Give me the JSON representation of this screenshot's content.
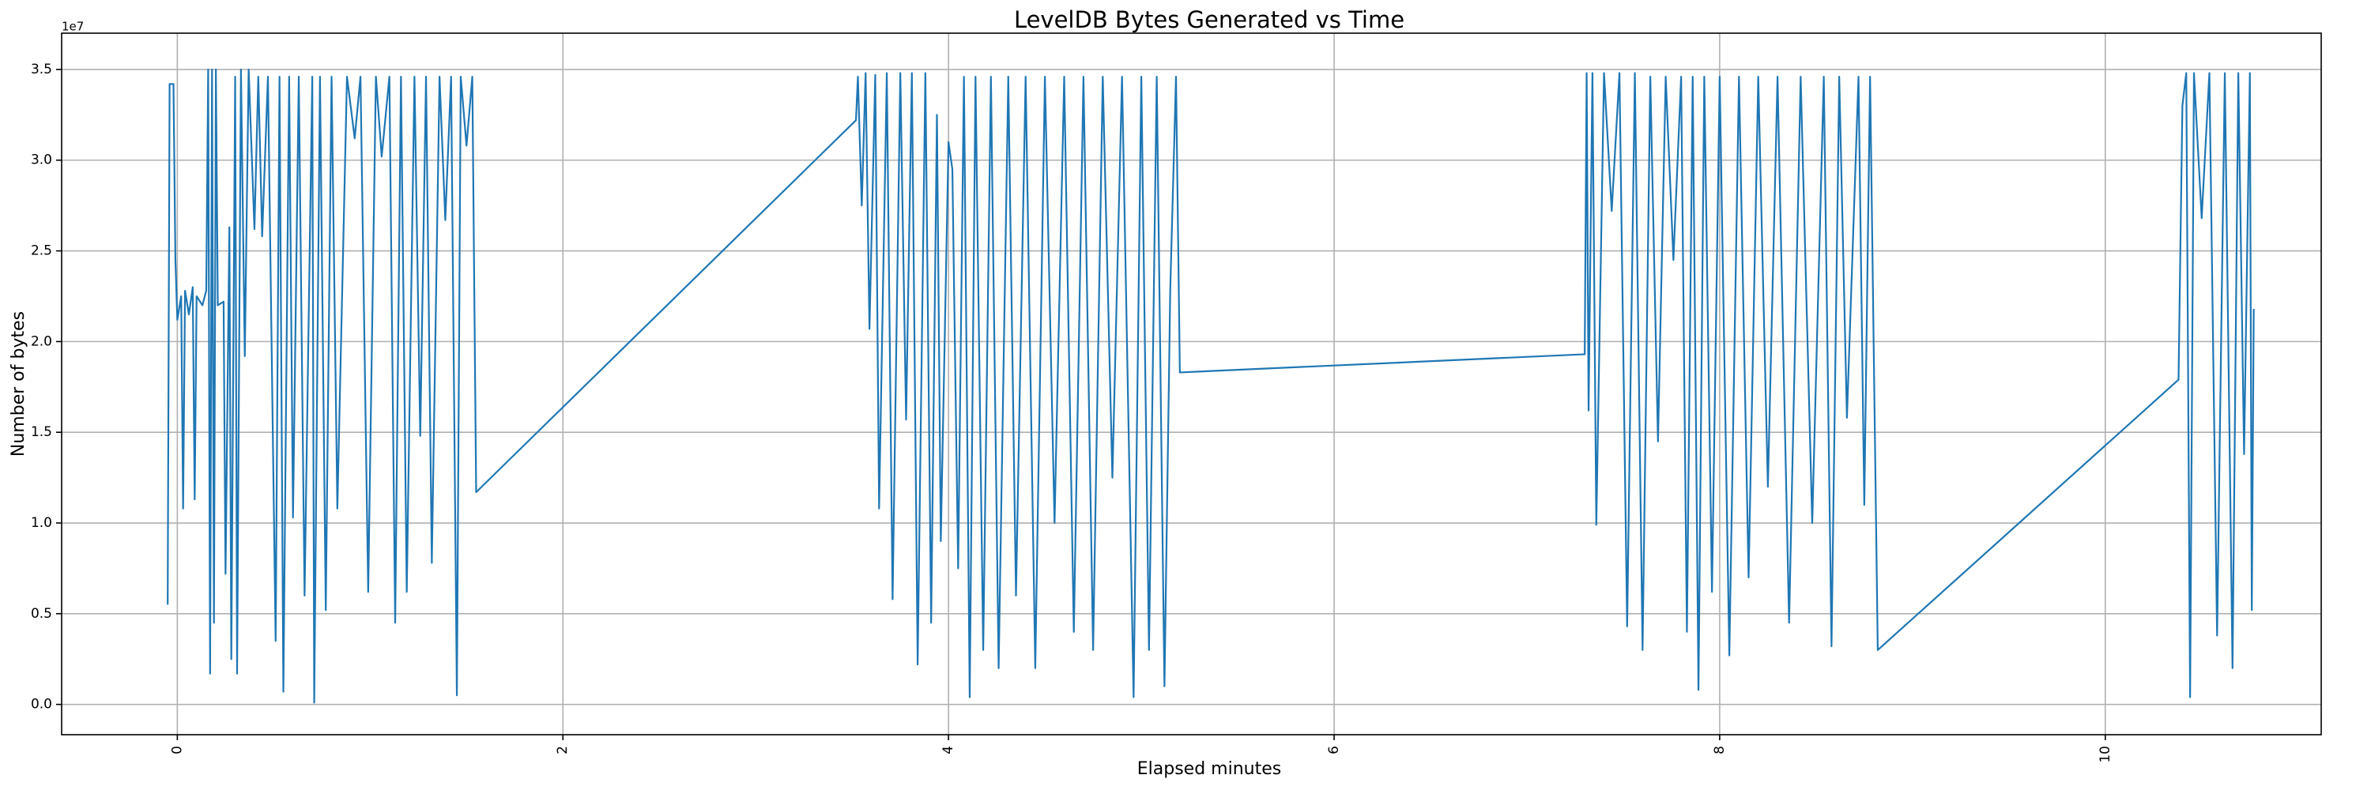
{
  "chart_data": {
    "type": "line",
    "title": "LevelDB Bytes Generated vs Time",
    "x_label": "Elapsed minutes",
    "y_label": "Number of bytes",
    "y_offset_label": "1e7",
    "xlim": [
      -0.6,
      11.12
    ],
    "ylim": [
      -0.167,
      3.7
    ],
    "xticks": [
      0,
      2,
      4,
      6,
      8,
      10
    ],
    "yticks": [
      {
        "value": 0,
        "label": "0.0"
      },
      0.5,
      {
        "value": 1,
        "label": "1.0"
      },
      1.5,
      {
        "value": 2,
        "label": "2.0"
      },
      2.5,
      {
        "value": 3,
        "label": "3.0"
      },
      3.5
    ],
    "grid": true,
    "x": [
      -0.05,
      -0.04,
      -0.02,
      -0.01,
      0.0,
      0.02,
      0.03,
      0.04,
      0.06,
      0.08,
      0.09,
      0.1,
      0.13,
      0.15,
      0.16,
      0.17,
      0.18,
      0.19,
      0.2,
      0.21,
      0.24,
      0.25,
      0.27,
      0.28,
      0.3,
      0.31,
      0.33,
      0.35,
      0.37,
      0.4,
      0.42,
      0.44,
      0.47,
      0.51,
      0.53,
      0.55,
      0.58,
      0.6,
      0.63,
      0.66,
      0.7,
      0.71,
      0.74,
      0.77,
      0.8,
      0.83,
      0.88,
      0.92,
      0.95,
      0.99,
      1.03,
      1.06,
      1.1,
      1.13,
      1.16,
      1.19,
      1.23,
      1.26,
      1.29,
      1.32,
      1.36,
      1.39,
      1.42,
      1.45,
      1.47,
      1.5,
      1.53,
      1.55,
      3.52,
      3.53,
      3.55,
      3.57,
      3.59,
      3.62,
      3.64,
      3.68,
      3.71,
      3.75,
      3.78,
      3.81,
      3.84,
      3.88,
      3.91,
      3.94,
      3.96,
      4.0,
      4.02,
      4.05,
      4.08,
      4.11,
      4.14,
      4.18,
      4.22,
      4.26,
      4.31,
      4.35,
      4.4,
      4.45,
      4.5,
      4.55,
      4.6,
      4.65,
      4.7,
      4.75,
      4.8,
      4.85,
      4.9,
      4.96,
      5.0,
      5.04,
      5.08,
      5.12,
      5.15,
      5.18,
      5.2,
      7.3,
      7.31,
      7.32,
      7.34,
      7.36,
      7.4,
      7.44,
      7.48,
      7.52,
      7.56,
      7.6,
      7.64,
      7.68,
      7.72,
      7.76,
      7.8,
      7.83,
      7.86,
      7.89,
      7.92,
      7.96,
      8.0,
      8.05,
      8.1,
      8.15,
      8.2,
      8.25,
      8.3,
      8.36,
      8.42,
      8.48,
      8.54,
      8.58,
      8.62,
      8.66,
      8.72,
      8.75,
      8.78,
      8.82,
      10.38,
      10.4,
      10.42,
      10.44,
      10.46,
      10.5,
      10.54,
      10.58,
      10.62,
      10.66,
      10.69,
      10.72,
      10.75,
      10.76,
      10.77
    ],
    "series": [
      {
        "color": "#1f77b4",
        "values": [
          0.55,
          3.42,
          3.42,
          2.45,
          2.12,
          2.25,
          1.08,
          2.28,
          2.15,
          2.3,
          1.13,
          2.25,
          2.2,
          2.28,
          3.5,
          0.17,
          3.5,
          0.45,
          3.5,
          2.2,
          2.22,
          0.72,
          2.63,
          0.25,
          3.46,
          0.17,
          3.5,
          1.92,
          3.5,
          2.62,
          3.46,
          2.58,
          3.46,
          0.35,
          3.46,
          0.07,
          3.46,
          1.03,
          3.46,
          0.6,
          3.46,
          0.01,
          3.46,
          0.52,
          3.46,
          1.08,
          3.46,
          3.12,
          3.46,
          0.62,
          3.46,
          3.02,
          3.46,
          0.45,
          3.46,
          0.62,
          3.46,
          1.48,
          3.46,
          0.78,
          3.46,
          2.67,
          3.46,
          0.05,
          3.46,
          3.08,
          3.46,
          1.17,
          3.22,
          3.46,
          2.75,
          3.48,
          2.07,
          3.47,
          1.08,
          3.48,
          0.58,
          3.48,
          1.57,
          3.48,
          0.22,
          3.48,
          0.45,
          3.25,
          0.9,
          3.1,
          2.95,
          0.75,
          3.46,
          0.04,
          3.46,
          0.3,
          3.46,
          0.2,
          3.46,
          0.6,
          3.46,
          0.2,
          3.46,
          1.0,
          3.46,
          0.4,
          3.46,
          0.3,
          3.46,
          1.25,
          3.46,
          0.04,
          3.46,
          0.3,
          3.46,
          0.1,
          2.28,
          3.46,
          1.83,
          1.93,
          3.48,
          1.62,
          3.48,
          0.99,
          3.48,
          2.72,
          3.48,
          0.43,
          3.48,
          0.3,
          3.46,
          1.45,
          3.46,
          2.45,
          3.46,
          0.4,
          3.46,
          0.08,
          3.46,
          0.62,
          3.46,
          0.27,
          3.46,
          0.7,
          3.46,
          1.2,
          3.46,
          0.45,
          3.46,
          1.0,
          3.46,
          0.32,
          3.46,
          1.58,
          3.46,
          1.1,
          3.46,
          0.3,
          1.79,
          3.3,
          3.48,
          0.04,
          3.48,
          2.68,
          3.48,
          0.38,
          3.48,
          0.2,
          3.48,
          1.38,
          3.48,
          0.52,
          2.18
        ]
      }
    ]
  }
}
